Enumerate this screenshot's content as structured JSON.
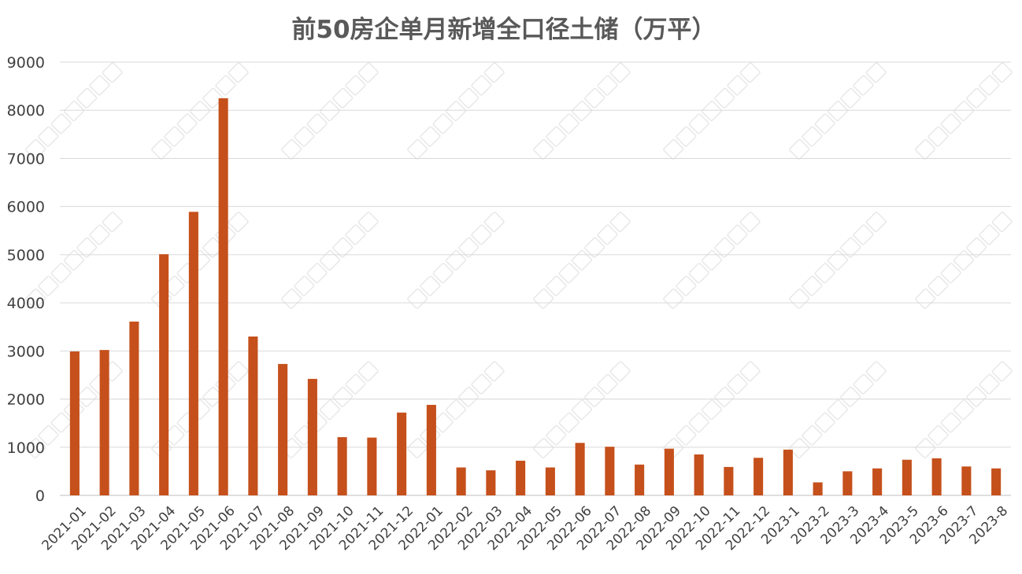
{
  "chart_data": {
    "type": "bar",
    "title": "前50房企单月新增全口径土储（万平）",
    "xlabel": "",
    "ylabel": "",
    "ylim": [
      0,
      9000
    ],
    "yticks": [
      0,
      1000,
      2000,
      3000,
      4000,
      5000,
      6000,
      7000,
      8000,
      9000
    ],
    "grid": true,
    "legend": "none",
    "bar_color": "#c5501b",
    "categories": [
      "2021-01",
      "2021-02",
      "2021-03",
      "2021-04",
      "2021-05",
      "2021-06",
      "2021-07",
      "2021-08",
      "2021-09",
      "2021-10",
      "2021-11",
      "2021-12",
      "2022-01",
      "2022-02",
      "2022-03",
      "2022-04",
      "2022-05",
      "2022-06",
      "2022-07",
      "2022-08",
      "2022-09",
      "2022-10",
      "2022-11",
      "2022-12",
      "2023-1",
      "2023-2",
      "2023-3",
      "2023-4",
      "2023-5",
      "2023-6",
      "2023-7",
      "2023-8"
    ],
    "values": [
      2990,
      3020,
      3610,
      5010,
      5890,
      8250,
      3300,
      2730,
      2420,
      1210,
      1200,
      1720,
      1880,
      580,
      520,
      720,
      580,
      1090,
      1010,
      640,
      970,
      850,
      590,
      780,
      950,
      270,
      500,
      560,
      740,
      770,
      600,
      560
    ]
  }
}
